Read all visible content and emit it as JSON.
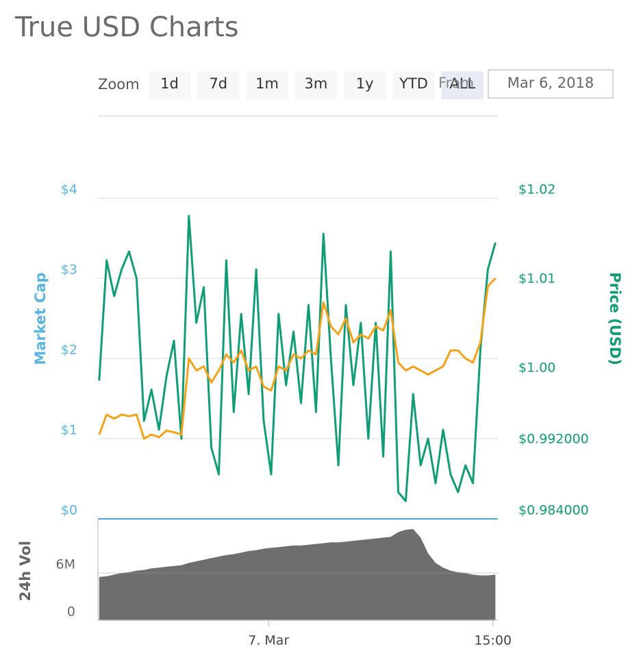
{
  "header": {
    "title": "True USD Charts"
  },
  "zoom": {
    "label": "Zoom",
    "buttons": [
      "1d",
      "7d",
      "1m",
      "3m",
      "1y",
      "YTD",
      "ALL"
    ]
  },
  "range": {
    "label": "From",
    "date": "Mar 6, 2018"
  },
  "chart_data": [
    {
      "type": "line",
      "ylabel": "Market Cap",
      "y2label": "Price (USD)",
      "grid": true,
      "x": [
        "2018-03-06T12:40",
        "2018-03-06T13:10",
        "2018-03-06T13:40",
        "2018-03-06T14:10",
        "2018-03-06T14:40",
        "2018-03-06T15:10",
        "2018-03-06T15:40",
        "2018-03-06T16:10",
        "2018-03-06T16:40",
        "2018-03-06T17:10",
        "2018-03-06T17:40",
        "2018-03-06T18:10",
        "2018-03-06T18:40",
        "2018-03-06T19:10",
        "2018-03-06T19:40",
        "2018-03-06T20:10",
        "2018-03-06T20:40",
        "2018-03-06T21:10",
        "2018-03-06T21:40",
        "2018-03-06T22:10",
        "2018-03-06T22:40",
        "2018-03-06T23:10",
        "2018-03-06T23:40",
        "2018-03-07T00:10",
        "2018-03-07T00:40",
        "2018-03-07T01:10",
        "2018-03-07T01:40",
        "2018-03-07T02:10",
        "2018-03-07T02:40",
        "2018-03-07T03:10",
        "2018-03-07T03:40",
        "2018-03-07T04:10",
        "2018-03-07T04:40",
        "2018-03-07T05:10",
        "2018-03-07T05:40",
        "2018-03-07T06:10",
        "2018-03-07T06:40",
        "2018-03-07T07:10",
        "2018-03-07T07:40",
        "2018-03-07T08:10",
        "2018-03-07T08:40",
        "2018-03-07T09:10",
        "2018-03-07T09:40",
        "2018-03-07T10:10",
        "2018-03-07T10:40",
        "2018-03-07T11:10",
        "2018-03-07T11:40",
        "2018-03-07T12:10",
        "2018-03-07T12:40",
        "2018-03-07T13:10",
        "2018-03-07T13:40",
        "2018-03-07T14:10",
        "2018-03-07T14:40",
        "2018-03-07T15:10"
      ],
      "xlim": [
        "2018-03-06T12:35",
        "2018-03-07T15:20"
      ],
      "ylim": [
        0,
        4
      ],
      "yticks": [
        {
          "value": 0,
          "label": "$0"
        },
        {
          "value": 1,
          "label": "$1"
        },
        {
          "value": 2,
          "label": "$2"
        },
        {
          "value": 3,
          "label": "$3"
        },
        {
          "value": 4,
          "label": "$4"
        }
      ],
      "y2lim": [
        0.984,
        1.02
      ],
      "y2ticks": [
        {
          "value": 0.984,
          "label": "$0.984000"
        },
        {
          "value": 0.992,
          "label": "$0.992000"
        },
        {
          "value": 1.0,
          "label": "$1.00"
        },
        {
          "value": 1.01,
          "label": "$1.01"
        },
        {
          "value": 1.02,
          "label": "$1.02"
        }
      ],
      "series": [
        {
          "color": "#109c76",
          "axis": "y2",
          "values": [
            0.9995,
            1.013,
            1.009,
            1.012,
            1.014,
            1.011,
            0.995,
            0.9985,
            0.994,
            1.0,
            1.004,
            0.993,
            1.018,
            1.006,
            1.01,
            0.992,
            0.989,
            1.013,
            0.996,
            1.007,
            0.998,
            1.012,
            0.995,
            0.989,
            1.007,
            0.999,
            1.005,
            0.997,
            1.008,
            0.996,
            1.016,
            1.002,
            0.99,
            1.008,
            0.999,
            1.006,
            0.993,
            1.006,
            0.991,
            1.014,
            0.987,
            0.986,
            0.998,
            0.99,
            0.993,
            0.988,
            0.994,
            0.989,
            0.987,
            0.99,
            0.988,
            1.003,
            1.012,
            1.015
          ]
        },
        {
          "color": "#f5a21b",
          "values": [
            1.05,
            1.3,
            1.25,
            1.3,
            1.28,
            1.3,
            1.0,
            1.05,
            1.02,
            1.1,
            1.08,
            1.05,
            2.0,
            1.85,
            1.9,
            1.7,
            1.85,
            2.05,
            1.95,
            2.1,
            1.85,
            1.9,
            1.65,
            1.6,
            1.9,
            1.85,
            2.05,
            2.0,
            2.1,
            2.05,
            2.7,
            2.4,
            2.3,
            2.5,
            2.2,
            2.3,
            2.25,
            2.4,
            2.35,
            2.6,
            1.95,
            1.85,
            1.9,
            1.85,
            1.8,
            1.85,
            1.9,
            2.1,
            2.1,
            2.0,
            1.95,
            2.2,
            2.9,
            3.0
          ]
        }
      ]
    },
    {
      "type": "area",
      "ylabel": "24h Vol",
      "color": "#6e6e6e",
      "x": [
        "2018-03-06T12:40",
        "2018-03-06T13:10",
        "2018-03-06T13:40",
        "2018-03-06T14:10",
        "2018-03-06T14:40",
        "2018-03-06T15:10",
        "2018-03-06T15:40",
        "2018-03-06T16:10",
        "2018-03-06T16:40",
        "2018-03-06T17:10",
        "2018-03-06T17:40",
        "2018-03-06T18:10",
        "2018-03-06T18:40",
        "2018-03-06T19:10",
        "2018-03-06T19:40",
        "2018-03-06T20:10",
        "2018-03-06T20:40",
        "2018-03-06T21:10",
        "2018-03-06T21:40",
        "2018-03-06T22:10",
        "2018-03-06T22:40",
        "2018-03-06T23:10",
        "2018-03-06T23:40",
        "2018-03-07T00:10",
        "2018-03-07T00:40",
        "2018-03-07T01:10",
        "2018-03-07T01:40",
        "2018-03-07T02:10",
        "2018-03-07T02:40",
        "2018-03-07T03:10",
        "2018-03-07T03:40",
        "2018-03-07T04:10",
        "2018-03-07T04:40",
        "2018-03-07T05:10",
        "2018-03-07T05:40",
        "2018-03-07T06:10",
        "2018-03-07T06:40",
        "2018-03-07T07:10",
        "2018-03-07T07:40",
        "2018-03-07T08:10",
        "2018-03-07T08:40",
        "2018-03-07T09:10",
        "2018-03-07T09:40",
        "2018-03-07T10:10",
        "2018-03-07T10:40",
        "2018-03-07T11:10",
        "2018-03-07T11:40",
        "2018-03-07T12:10",
        "2018-03-07T12:40",
        "2018-03-07T13:10",
        "2018-03-07T13:40",
        "2018-03-07T14:10",
        "2018-03-07T14:40",
        "2018-03-07T15:10"
      ],
      "xlim": [
        "2018-03-06T12:35",
        "2018-03-07T15:20"
      ],
      "xticks": [
        {
          "value": "2018-03-07T00:00",
          "label": "7. Mar"
        },
        {
          "value": "2018-03-07T15:00",
          "label": "15:00"
        }
      ],
      "ylim": [
        0,
        12800000
      ],
      "yticks": [
        0,
        {
          "value": 6000000,
          "label": "6M"
        }
      ],
      "grid": true,
      "values": [
        5500000,
        5600000,
        5800000,
        6000000,
        6100000,
        6300000,
        6400000,
        6600000,
        6700000,
        6800000,
        6900000,
        7000000,
        7300000,
        7500000,
        7700000,
        7900000,
        8100000,
        8300000,
        8400000,
        8600000,
        8800000,
        8900000,
        9100000,
        9200000,
        9300000,
        9400000,
        9500000,
        9500000,
        9600000,
        9700000,
        9800000,
        9900000,
        9900000,
        10000000,
        10100000,
        10200000,
        10300000,
        10400000,
        10500000,
        10600000,
        11200000,
        11500000,
        11600000,
        10500000,
        8500000,
        7300000,
        6700000,
        6300000,
        6100000,
        6000000,
        5800000,
        5700000,
        5700000,
        5800000
      ]
    }
  ]
}
